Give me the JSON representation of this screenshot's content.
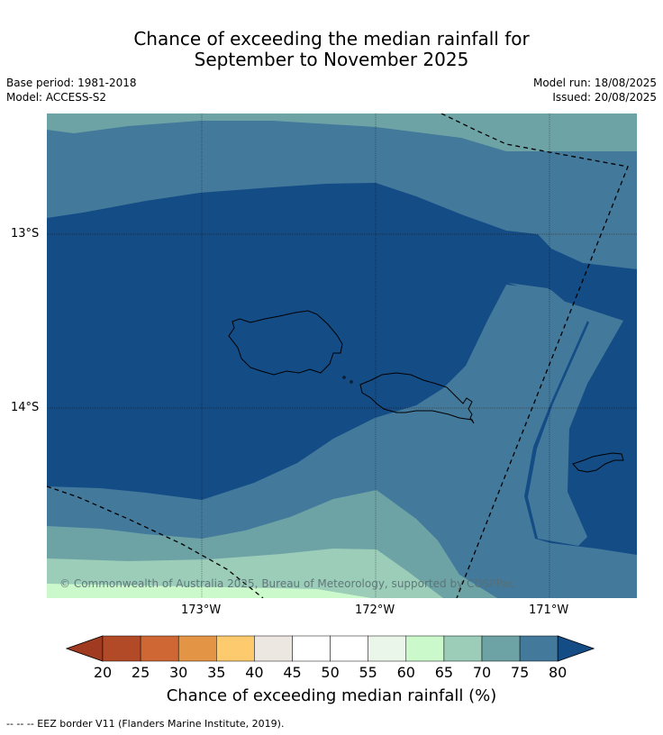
{
  "title": {
    "line1": "Chance of exceeding the median rainfall for",
    "line2": "September to November 2025"
  },
  "meta": {
    "base_period": "Base period: 1981-2018",
    "model": "Model: ACCESS-S2",
    "model_run": "Model run: 18/08/2025",
    "issued": "Issued: 20/08/2025"
  },
  "map": {
    "latitude_labels": [
      "13°S",
      "14°S"
    ],
    "longitude_labels": [
      "173°W",
      "172°W",
      "171°W"
    ],
    "copyright": "© Commonwealth of Australia 2025, Bureau of Meteorology, supported by COSPPac",
    "features": [
      "Savai'i island",
      "Upolu island",
      "Tutuila island",
      "EEZ border"
    ]
  },
  "colorbar": {
    "ticks": [
      "20",
      "25",
      "30",
      "35",
      "40",
      "45",
      "50",
      "55",
      "60",
      "65",
      "70",
      "75",
      "80"
    ],
    "colors": [
      "#a03b21",
      "#b34a27",
      "#cf6734",
      "#e39445",
      "#fdcb6e",
      "#ede7e2",
      "#ffffff",
      "#ffffff",
      "#eaf6ea",
      "#ccf9cc",
      "#9bcdb9",
      "#6ea3a5",
      "#43799b",
      "#144c86"
    ],
    "label": "Chance of exceeding median rainfall (%)"
  },
  "footnote": "--  --  -- EEZ border V11 (Flanders Marine Institute, 2019)."
}
